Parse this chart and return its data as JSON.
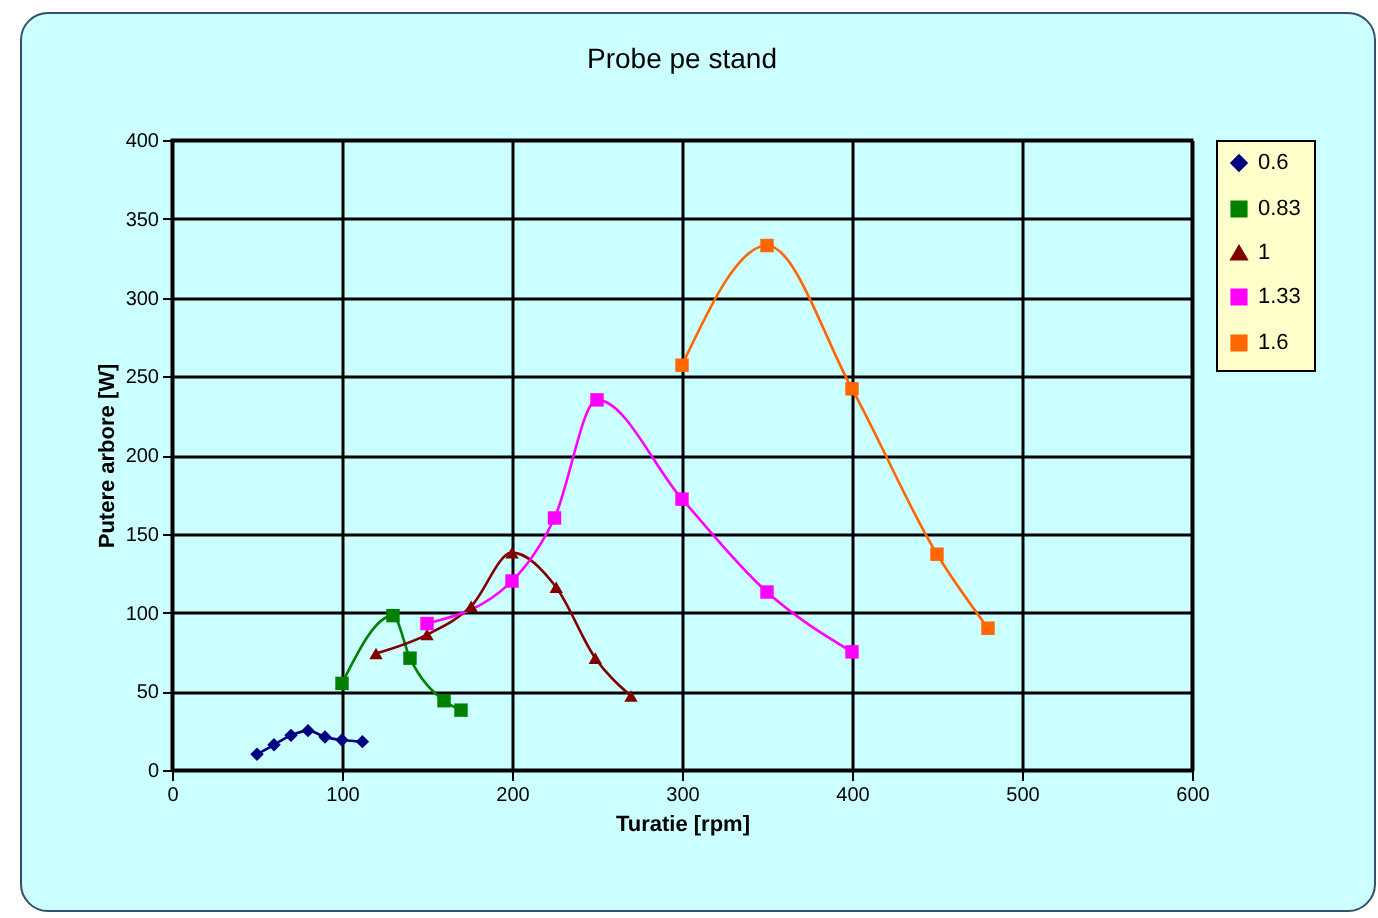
{
  "chart_data": {
    "type": "line",
    "title": "Probe pe stand",
    "xlabel": "Turatie [rpm]",
    "ylabel": "Putere arbore [W]",
    "series": [
      {
        "name": "0.6",
        "color": "#000080",
        "marker": "diamond",
        "x": [
          50,
          60,
          70,
          80,
          90,
          100,
          112
        ],
        "values": [
          10,
          16,
          22,
          25,
          21,
          19,
          18
        ]
      },
      {
        "name": "0.83",
        "color": "#008000",
        "marker": "square",
        "x": [
          100,
          130,
          140,
          160,
          170
        ],
        "values": [
          55,
          98,
          71,
          44,
          38
        ]
      },
      {
        "name": "1",
        "color": "#800000",
        "marker": "triangle",
        "x": [
          120,
          150,
          176,
          200,
          226,
          249,
          270
        ],
        "values": [
          74,
          86,
          104,
          138,
          116,
          71,
          47
        ]
      },
      {
        "name": "1.33",
        "color": "#ff00ff",
        "marker": "square",
        "x": [
          150,
          200,
          225,
          250,
          300,
          350,
          400
        ],
        "values": [
          93,
          120,
          160,
          235,
          172,
          113,
          75
        ]
      },
      {
        "name": "1.6",
        "color": "#ff6600",
        "marker": "square",
        "x": [
          300,
          350,
          400,
          450,
          480
        ],
        "values": [
          257,
          333,
          242,
          137,
          90
        ]
      }
    ],
    "xlim": [
      0,
      600
    ],
    "xticks": [
      0,
      100,
      200,
      300,
      400,
      500,
      600
    ],
    "ylim": [
      0,
      400
    ],
    "yticks": [
      0,
      50,
      100,
      150,
      200,
      250,
      300,
      350,
      400
    ],
    "grid": true,
    "legend": "right",
    "line_style": "solid"
  }
}
